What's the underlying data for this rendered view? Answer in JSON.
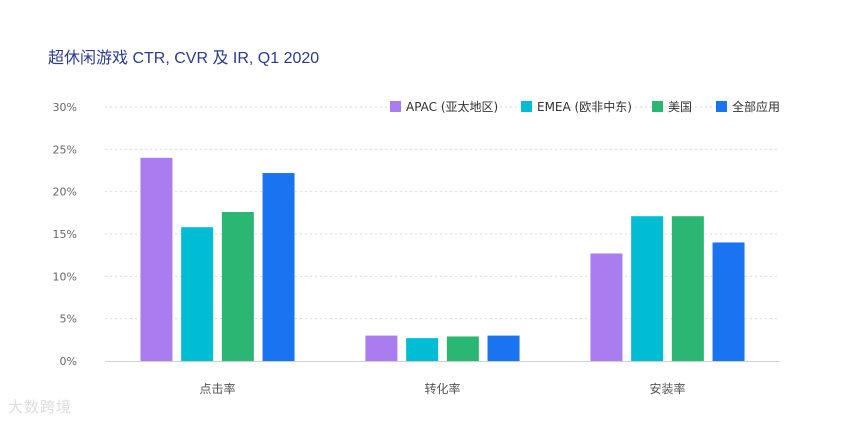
{
  "watermark": "大数跨境",
  "chart_data": {
    "type": "bar",
    "title": "超休闲游戏 CTR, CVR 及 IR, Q1 2020",
    "categories": [
      "点击率",
      "转化率",
      "安装率"
    ],
    "series": [
      {
        "name": "APAC (亚太地区)",
        "color": "#a97cf0",
        "values": [
          24.0,
          3.0,
          12.7
        ]
      },
      {
        "name": "EMEA (欧非中东)",
        "color": "#00bcd4",
        "values": [
          15.8,
          2.7,
          17.1
        ]
      },
      {
        "name": "美国",
        "color": "#2bb673",
        "values": [
          17.6,
          2.9,
          17.1
        ]
      },
      {
        "name": "全部应用",
        "color": "#1a73f0",
        "values": [
          22.2,
          3.0,
          14.0
        ]
      }
    ],
    "ylim": [
      0,
      30
    ],
    "yticks": [
      0,
      5,
      10,
      15,
      20,
      25,
      30
    ],
    "ytick_labels": [
      "0%",
      "5%",
      "10%",
      "15%",
      "20%",
      "25%",
      "30%"
    ],
    "grid": true,
    "legend_position": "top-right"
  }
}
